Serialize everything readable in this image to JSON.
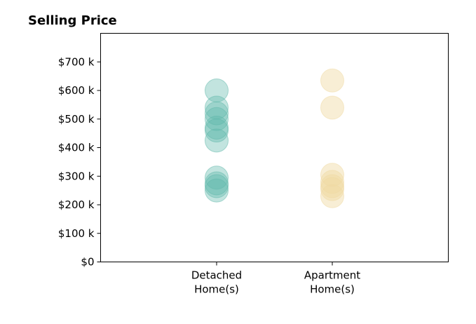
{
  "chart_data": {
    "type": "scatter",
    "title": "Selling Price",
    "xlabel": "",
    "ylabel": "",
    "categories": [
      "Detached Home(s)",
      "Apartment Home(s)"
    ],
    "category_label_lines": [
      [
        "Detached",
        "Home(s)"
      ],
      [
        "Apartment",
        "Home(s)"
      ]
    ],
    "ylim": [
      0,
      800
    ],
    "y_unit": "k",
    "yticks": [
      0,
      100,
      200,
      300,
      400,
      500,
      600,
      700
    ],
    "ytick_labels": [
      "$0",
      "$100 k",
      "$200 k",
      "$300 k",
      "$400 k",
      "$500 k",
      "$600 k",
      "$700 k"
    ],
    "grid": false,
    "series": [
      {
        "category": "Detached Home(s)",
        "color": "#5fb8aa",
        "values": [
          600,
          540,
          520,
          500,
          470,
          460,
          425,
          295,
          275,
          265,
          250
        ]
      },
      {
        "category": "Apartment Home(s)",
        "color": "#f0d9a2",
        "values": [
          635,
          540,
          305,
          280,
          265,
          255,
          230
        ]
      }
    ]
  }
}
